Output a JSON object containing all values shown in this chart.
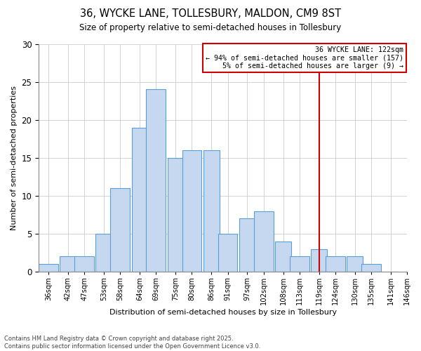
{
  "title": "36, WYCKE LANE, TOLLESBURY, MALDON, CM9 8ST",
  "subtitle": "Size of property relative to semi-detached houses in Tollesbury",
  "xlabel": "Distribution of semi-detached houses by size in Tollesbury",
  "ylabel": "Number of semi-detached properties",
  "bar_labels": [
    "36sqm",
    "42sqm",
    "47sqm",
    "53sqm",
    "58sqm",
    "64sqm",
    "69sqm",
    "75sqm",
    "80sqm",
    "86sqm",
    "91sqm",
    "97sqm",
    "102sqm",
    "108sqm",
    "113sqm",
    "119sqm",
    "124sqm",
    "130sqm",
    "135sqm",
    "141sqm",
    "146sqm"
  ],
  "bar_values": [
    1,
    2,
    2,
    5,
    11,
    19,
    24,
    15,
    16,
    16,
    5,
    7,
    8,
    4,
    2,
    3,
    2,
    2,
    1,
    0
  ],
  "bar_color": "#c5d8f0",
  "bar_edge_color": "#5a9fd4",
  "vline_x": 119,
  "vline_color": "#cc0000",
  "annotation_title": "36 WYCKE LANE: 122sqm",
  "annotation_line1": "← 94% of semi-detached houses are smaller (157)",
  "annotation_line2": "5% of semi-detached houses are larger (9) →",
  "annotation_box_edgecolor": "#cc0000",
  "annotation_bg_color": "#ffffff",
  "ylim": [
    0,
    30
  ],
  "yticks": [
    0,
    5,
    10,
    15,
    20,
    25,
    30
  ],
  "label_vals": [
    36,
    42,
    47,
    53,
    58,
    64,
    69,
    75,
    80,
    86,
    91,
    97,
    102,
    108,
    113,
    119,
    124,
    130,
    135,
    141,
    146
  ],
  "footer_line1": "Contains HM Land Registry data © Crown copyright and database right 2025.",
  "footer_line2": "Contains public sector information licensed under the Open Government Licence v3.0.",
  "background_color": "#ffffff",
  "grid_color": "#cccccc"
}
